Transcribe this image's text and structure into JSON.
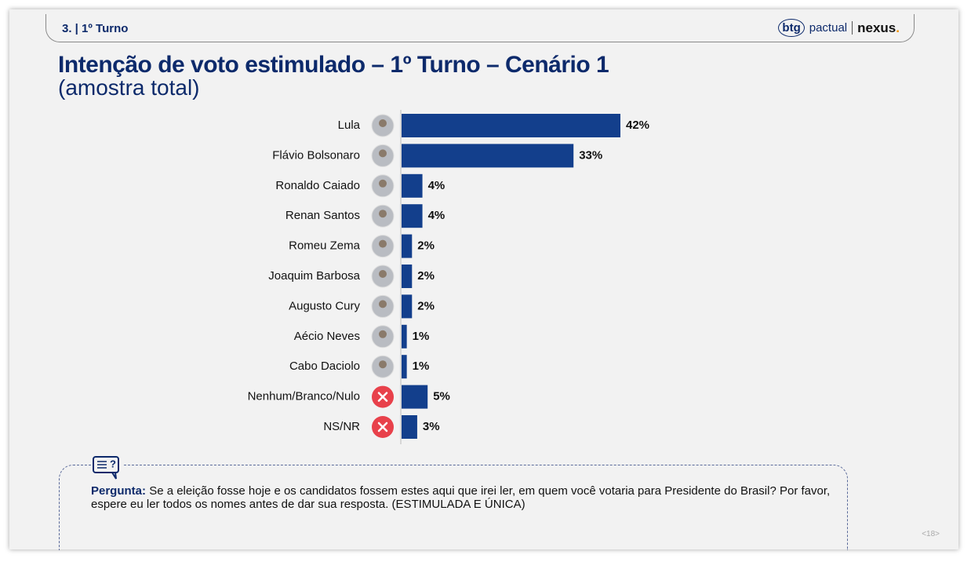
{
  "header": {
    "section": "3. | 1º Turno",
    "logo_btg": "btg",
    "logo_pactual": "pactual",
    "logo_nexus": "nexus"
  },
  "chart_data": {
    "type": "bar",
    "orientation": "horizontal",
    "title": "Intenção de voto estimulado – 1º Turno – Cenário 1",
    "subtitle": "(amostra total)",
    "categories": [
      "Lula",
      "Flávio Bolsonaro",
      "Ronaldo Caiado",
      "Renan Santos",
      "Romeu Zema",
      "Joaquim Barbosa",
      "Augusto Cury",
      "Aécio Neves",
      "Cabo Daciolo",
      "Nenhum/Branco/Nulo",
      "NS/NR"
    ],
    "values": [
      42,
      33,
      4,
      4,
      2,
      2,
      2,
      1,
      1,
      5,
      3
    ],
    "value_labels": [
      "42%",
      "33%",
      "4%",
      "4%",
      "2%",
      "2%",
      "2%",
      "1%",
      "1%",
      "5%",
      "3%"
    ],
    "color": "#133f8c"
  },
  "question": {
    "label": "Pergunta:",
    "text": "Se a eleição fosse hoje e os candidatos fossem estes aqui que irei ler, em quem você votaria para Presidente do Brasil? Por favor, espere eu ler todos os nomes antes de dar sua resposta. (ESTIMULADA E ÚNICA)"
  },
  "page_number": "<18>"
}
